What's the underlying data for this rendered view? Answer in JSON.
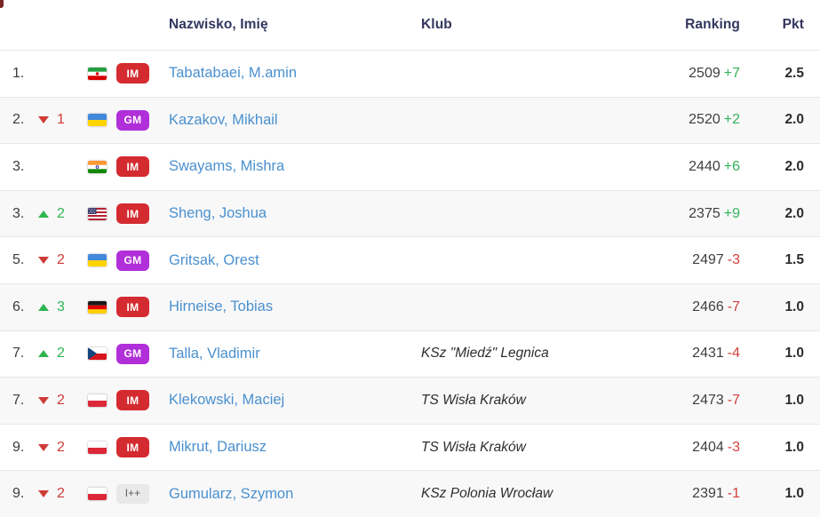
{
  "header": {
    "name_label": "Nazwisko, Imię",
    "club_label": "Klub",
    "ranking_label": "Ranking",
    "points_label": "Pkt"
  },
  "colors": {
    "header_text": "#33355e",
    "link_blue": "#4a90cf",
    "positive_green": "#2eb550",
    "negative_red": "#cf3b36",
    "im_badge": "#d42b30",
    "gm_badge": "#b02fd9",
    "other_badge_bg": "#e9e9ea",
    "stripe_bg": "#f8f8f9",
    "separator": "#e7e7e8"
  },
  "rows": [
    {
      "rank": "1.",
      "change_dir": "",
      "change": "",
      "flag": "iran",
      "title": "IM",
      "name": "Tabatabaei, M.amin",
      "club": "",
      "rating": "2509",
      "rating_change": "+7",
      "points": "2.5"
    },
    {
      "rank": "2.",
      "change_dir": "down",
      "change": "1",
      "flag": "ukraine",
      "title": "GM",
      "name": "Kazakov, Mikhail",
      "club": "",
      "rating": "2520",
      "rating_change": "+2",
      "points": "2.0"
    },
    {
      "rank": "3.",
      "change_dir": "",
      "change": "",
      "flag": "india",
      "title": "IM",
      "name": "Swayams, Mishra",
      "club": "",
      "rating": "2440",
      "rating_change": "+6",
      "points": "2.0"
    },
    {
      "rank": "3.",
      "change_dir": "up",
      "change": "2",
      "flag": "usa",
      "title": "IM",
      "name": "Sheng, Joshua",
      "club": "",
      "rating": "2375",
      "rating_change": "+9",
      "points": "2.0"
    },
    {
      "rank": "5.",
      "change_dir": "down",
      "change": "2",
      "flag": "ukraine",
      "title": "GM",
      "name": "Gritsak, Orest",
      "club": "",
      "rating": "2497",
      "rating_change": "-3",
      "points": "1.5"
    },
    {
      "rank": "6.",
      "change_dir": "up",
      "change": "3",
      "flag": "germany",
      "title": "IM",
      "name": "Hirneise, Tobias",
      "club": "",
      "rating": "2466",
      "rating_change": "-7",
      "points": "1.0"
    },
    {
      "rank": "7.",
      "change_dir": "up",
      "change": "2",
      "flag": "czech",
      "title": "GM",
      "name": "Talla, Vladimir",
      "club": "KSz \"Miedź\" Legnica",
      "rating": "2431",
      "rating_change": "-4",
      "points": "1.0"
    },
    {
      "rank": "7.",
      "change_dir": "down",
      "change": "2",
      "flag": "poland",
      "title": "IM",
      "name": "Klekowski, Maciej",
      "club": "TS Wisła Kraków",
      "rating": "2473",
      "rating_change": "-7",
      "points": "1.0"
    },
    {
      "rank": "9.",
      "change_dir": "down",
      "change": "2",
      "flag": "poland",
      "title": "IM",
      "name": "Mikrut, Dariusz",
      "club": "TS Wisła Kraków",
      "rating": "2404",
      "rating_change": "-3",
      "points": "1.0"
    },
    {
      "rank": "9.",
      "change_dir": "down",
      "change": "2",
      "flag": "poland",
      "title": "I++",
      "name": "Gumularz, Szymon",
      "club": "KSz Polonia Wrocław",
      "rating": "2391",
      "rating_change": "-1",
      "points": "1.0"
    }
  ]
}
